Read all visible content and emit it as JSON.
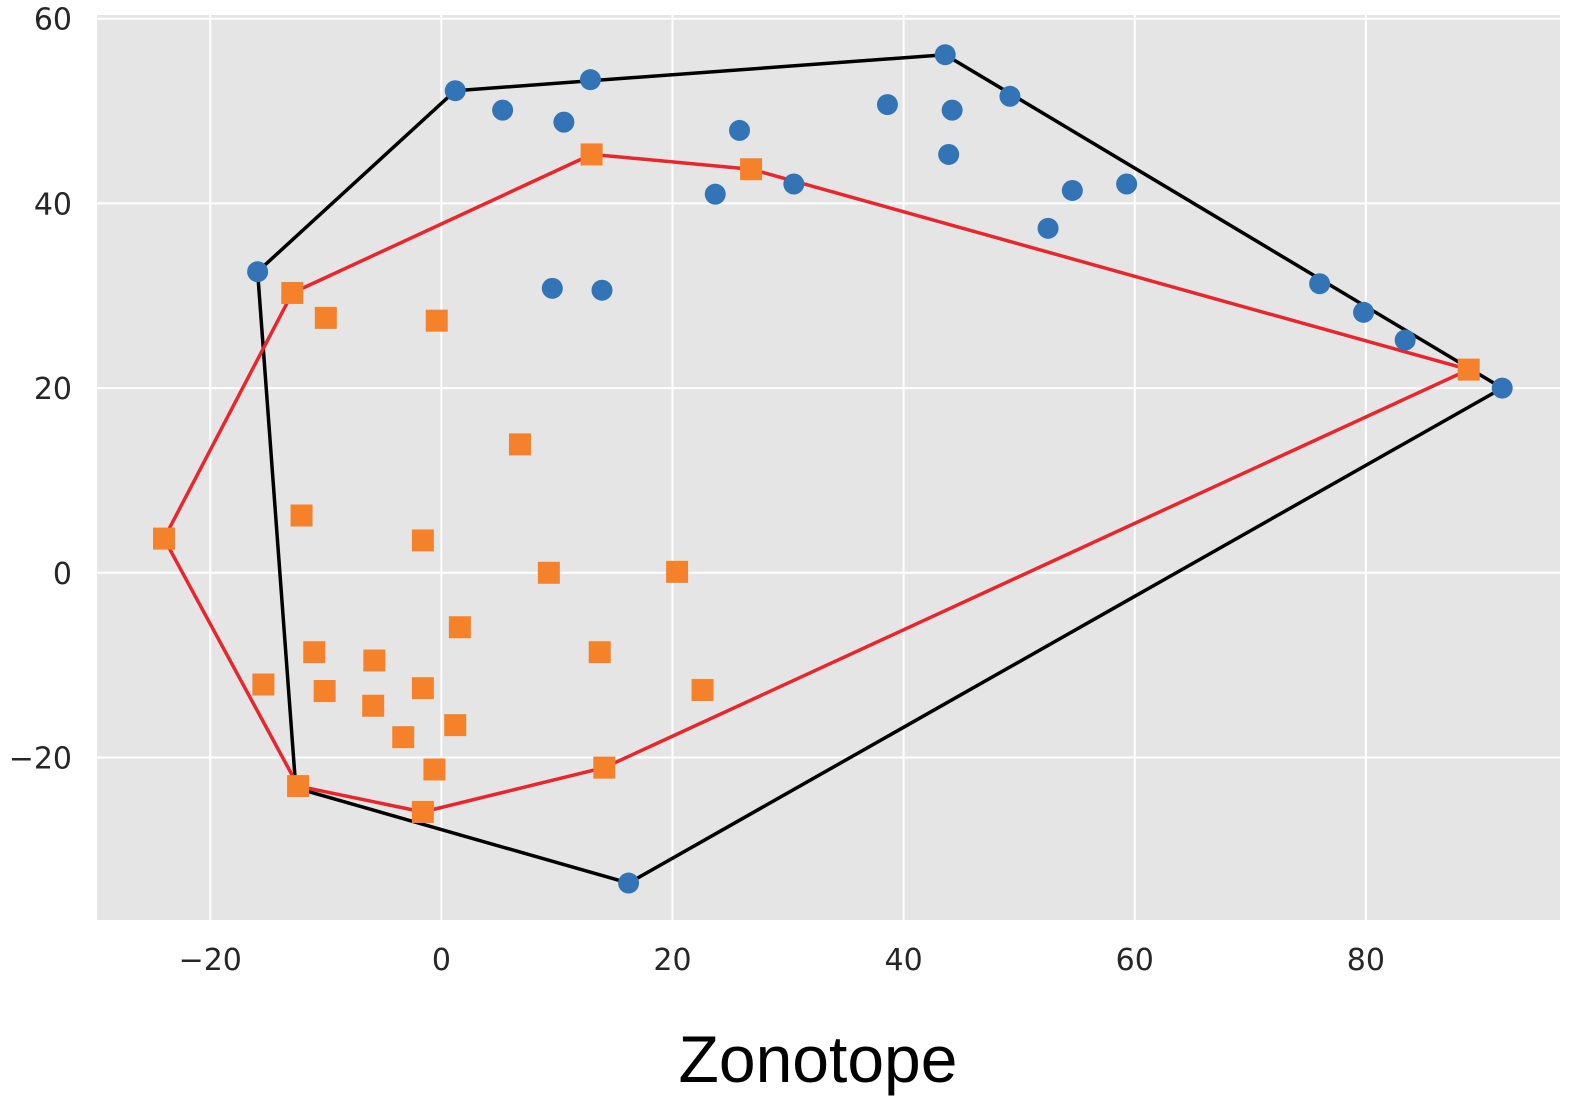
{
  "chart_data": {
    "type": "scatter",
    "title": "",
    "xlabel": "",
    "ylabel": "",
    "caption": "Zonotope",
    "xlim": [
      -29.8,
      96.8
    ],
    "ylim": [
      -37.6,
      60.4
    ],
    "xticks": [
      -20,
      0,
      20,
      40,
      60,
      80
    ],
    "yticks": [
      -20,
      0,
      20,
      40,
      60
    ],
    "xtick_labels": [
      "−20",
      "0",
      "20",
      "40",
      "60",
      "80"
    ],
    "ytick_labels": [
      "−20",
      "0",
      "20",
      "40",
      "60"
    ],
    "grid": true,
    "colors": {
      "background": "#e5e5e5",
      "grid": "#ffffff",
      "series_blue": "#3274b5",
      "series_orange": "#f5822a",
      "hull_blue": "#000000",
      "hull_orange": "#e8262b"
    },
    "series": [
      {
        "name": "blue points",
        "marker": "circle",
        "points": [
          [
            -15.9,
            32.6
          ],
          [
            1.2,
            52.2
          ],
          [
            5.3,
            50.1
          ],
          [
            10.6,
            48.8
          ],
          [
            12.9,
            53.4
          ],
          [
            43.6,
            56.1
          ],
          [
            38.6,
            50.7
          ],
          [
            44.2,
            50.1
          ],
          [
            49.2,
            51.6
          ],
          [
            43.9,
            45.3
          ],
          [
            25.8,
            47.9
          ],
          [
            23.7,
            41.0
          ],
          [
            30.5,
            42.1
          ],
          [
            54.6,
            41.4
          ],
          [
            59.3,
            42.1
          ],
          [
            52.5,
            37.3
          ],
          [
            9.6,
            30.8
          ],
          [
            13.9,
            30.6
          ],
          [
            76.0,
            31.3
          ],
          [
            79.8,
            28.2
          ],
          [
            83.4,
            25.2
          ],
          [
            91.8,
            20.0
          ],
          [
            16.2,
            -33.6
          ]
        ]
      },
      {
        "name": "orange points",
        "marker": "square",
        "points": [
          [
            -24.0,
            3.7
          ],
          [
            -12.9,
            30.3
          ],
          [
            -10.0,
            27.6
          ],
          [
            -0.4,
            27.3
          ],
          [
            6.8,
            13.9
          ],
          [
            -12.1,
            6.2
          ],
          [
            -1.6,
            3.5
          ],
          [
            9.3,
            0.0
          ],
          [
            20.4,
            0.1
          ],
          [
            1.6,
            -5.9
          ],
          [
            -11.0,
            -8.6
          ],
          [
            -5.8,
            -9.5
          ],
          [
            13.7,
            -8.6
          ],
          [
            -1.6,
            -12.5
          ],
          [
            -10.1,
            -12.8
          ],
          [
            -15.4,
            -12.1
          ],
          [
            -5.9,
            -14.4
          ],
          [
            22.6,
            -12.7
          ],
          [
            1.2,
            -16.5
          ],
          [
            -3.3,
            -17.8
          ],
          [
            -0.6,
            -21.3
          ],
          [
            14.1,
            -21.1
          ],
          [
            -12.4,
            -23.1
          ],
          [
            -1.6,
            -25.9
          ],
          [
            13.0,
            45.3
          ],
          [
            26.8,
            43.7
          ],
          [
            88.9,
            22.0
          ]
        ]
      }
    ],
    "hulls": [
      {
        "name": "blue hull",
        "points": [
          [
            -15.9,
            32.6
          ],
          [
            1.2,
            52.2
          ],
          [
            43.6,
            56.1
          ],
          [
            91.8,
            20.0
          ],
          [
            16.2,
            -33.6
          ],
          [
            -12.6,
            -23.3
          ]
        ]
      },
      {
        "name": "orange hull",
        "points": [
          [
            -24.0,
            3.7
          ],
          [
            -12.9,
            30.3
          ],
          [
            13.0,
            45.3
          ],
          [
            26.8,
            43.7
          ],
          [
            88.9,
            22.0
          ],
          [
            14.1,
            -21.1
          ],
          [
            -1.6,
            -25.9
          ],
          [
            -12.4,
            -23.1
          ]
        ]
      }
    ]
  }
}
